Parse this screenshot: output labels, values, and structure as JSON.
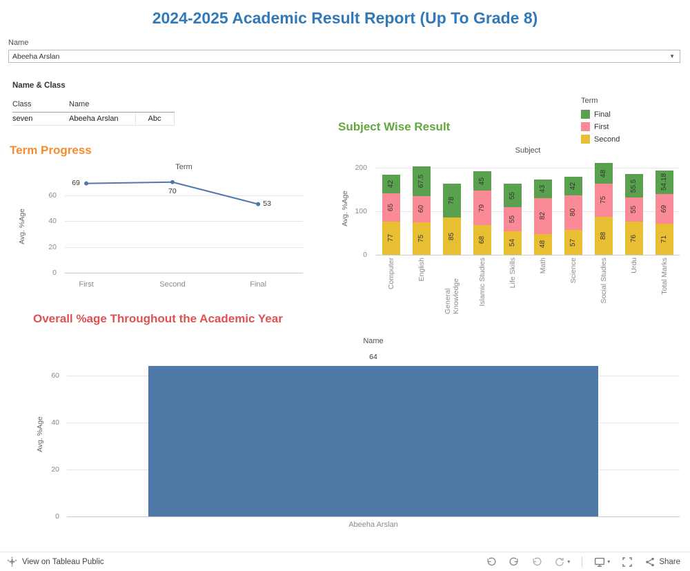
{
  "title": "2024-2025 Academic Result Report (Up To Grade 8)",
  "filter": {
    "label": "Name",
    "value": "Abeeha Arslan"
  },
  "icons": {
    "select_caret": "▼",
    "caret_down": "▾"
  },
  "name_class": {
    "title": "Name & Class",
    "col_class": "Class",
    "col_name": "Name",
    "class_value": "seven",
    "name_value": "Abeeha Arslan",
    "measure_value": "Abc"
  },
  "colors": {
    "page_title": "#3179b8",
    "term_heading": "#f68b2e",
    "subject_heading": "#62a73e",
    "overall_heading": "#e05252",
    "series_blue": "#4e79a7",
    "final_green": "#59a14f",
    "first_pink": "#fa8a96",
    "second_yellow": "#e8bf33"
  },
  "footer": {
    "view_label": "View on Tableau Public",
    "share_label": "Share"
  },
  "chart_data": [
    {
      "id": "term_progress",
      "type": "line",
      "title": "Term Progress",
      "axis_title": "Term",
      "ylabel": "Avg. %Age",
      "categories": [
        "First",
        "Second",
        "Final"
      ],
      "values": [
        69,
        70,
        53
      ],
      "yticks": [
        0,
        20,
        40,
        60
      ],
      "ylim": [
        0,
        72
      ],
      "line_color": "#4e79a7",
      "grid": true,
      "legend_position": "none"
    },
    {
      "id": "subject_wise",
      "type": "stacked_bar",
      "title": "Subject Wise Result",
      "axis_title": "Subject",
      "ylabel": "Avg. %Age",
      "legend_title": "Term",
      "legend_position": "top-right",
      "legend": [
        {
          "name": "Final",
          "color": "#59a14f"
        },
        {
          "name": "First",
          "color": "#fa8a96"
        },
        {
          "name": "Second",
          "color": "#e8bf33"
        }
      ],
      "categories": [
        "Computer",
        "English",
        "General Knowledge",
        "Islamic Studies",
        "Life Skills",
        "Math",
        "Science",
        "Social Studies",
        "Urdu",
        "Total Marks"
      ],
      "series": [
        {
          "name": "Second",
          "color": "#e8bf33",
          "values": [
            77,
            75,
            85,
            68,
            54,
            48,
            57,
            88,
            76,
            71
          ]
        },
        {
          "name": "First",
          "color": "#fa8a96",
          "values": [
            65,
            60,
            null,
            79,
            55,
            82,
            80,
            75,
            55,
            69
          ]
        },
        {
          "name": "Final",
          "color": "#59a14f",
          "values": [
            42,
            67.5,
            78,
            45,
            55,
            43,
            42,
            48,
            55.5,
            54.18
          ]
        }
      ],
      "yticks": [
        0,
        100,
        200
      ],
      "ylim": [
        0,
        213
      ],
      "grid": true
    },
    {
      "id": "overall",
      "type": "bar",
      "title": "Overall %age Throughout the Academic Year",
      "axis_title": "Name",
      "ylabel": "Avg. %Age",
      "categories": [
        "Abeeha Arslan"
      ],
      "values": [
        64
      ],
      "yticks": [
        0,
        20,
        40,
        60
      ],
      "ylim": [
        0,
        70
      ],
      "bar_color": "#4e79a7",
      "grid": true,
      "legend_position": "none"
    }
  ]
}
